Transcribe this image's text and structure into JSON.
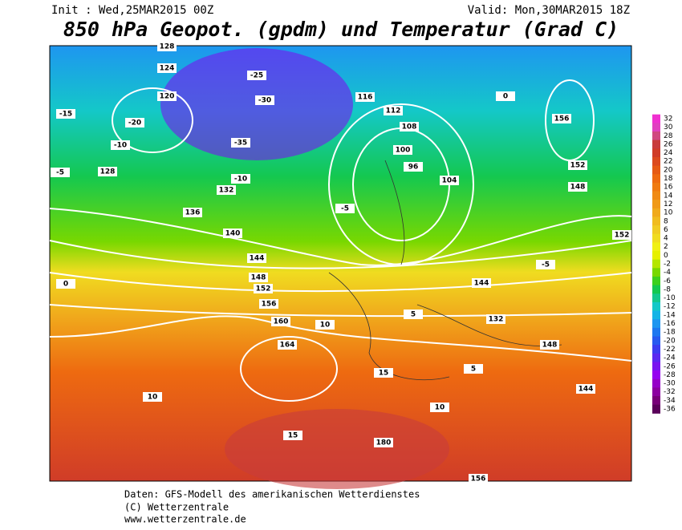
{
  "header": {
    "init": "Init : Wed,25MAR2015 00Z",
    "valid": "Valid: Mon,30MAR2015 18Z",
    "title": "850 hPa Geopot. (gpdm) und Temperatur (Grad C)"
  },
  "footer": [
    "Daten: GFS-Modell des amerikanischen Wetterdienstes",
    "(C) Wetterzentrale",
    "www.wetterzentrale.de"
  ],
  "colorbar": {
    "ticks": [
      32,
      30,
      28,
      26,
      24,
      22,
      20,
      18,
      16,
      14,
      12,
      10,
      8,
      6,
      4,
      2,
      0,
      -2,
      -4,
      -6,
      -8,
      -10,
      -12,
      -14,
      -16,
      -18,
      -20,
      -22,
      -24,
      -26,
      -28,
      -30,
      -32,
      -34,
      -36
    ],
    "colors": [
      "#f030d0",
      "#e040c0",
      "#d04880",
      "#c83c3c",
      "#d03c28",
      "#dc4a1e",
      "#e65a14",
      "#ee6a10",
      "#f07a10",
      "#f08a14",
      "#f09a18",
      "#f0aa1c",
      "#f0bc20",
      "#f0cc24",
      "#f0dc20",
      "#f0f014",
      "#e6f000",
      "#b4e600",
      "#78d800",
      "#3cd01e",
      "#14c850",
      "#14c88c",
      "#14c8c8",
      "#14b4e6",
      "#1e96f0",
      "#1e78f0",
      "#285af0",
      "#3c3cf0",
      "#5a28f0",
      "#7814f0",
      "#9600f0",
      "#9600c8",
      "#8c00a0",
      "#780078",
      "#5a005a"
    ]
  },
  "contour_labels": [
    "128",
    "124",
    "120",
    "-15",
    "-20",
    "-10",
    "-5",
    "128",
    "132",
    "136",
    "140",
    "144",
    "148",
    "152",
    "156",
    "160",
    "164",
    "-25",
    "-30",
    "-35",
    "116",
    "112",
    "108",
    "100",
    "96",
    "104",
    "10",
    "5",
    "0",
    "15",
    "180",
    "156",
    "148",
    "152",
    "144",
    "132",
    "10",
    "15",
    "-10",
    "-5",
    "156",
    "152",
    "148",
    "144",
    "5",
    "10",
    "-5",
    "0"
  ]
}
